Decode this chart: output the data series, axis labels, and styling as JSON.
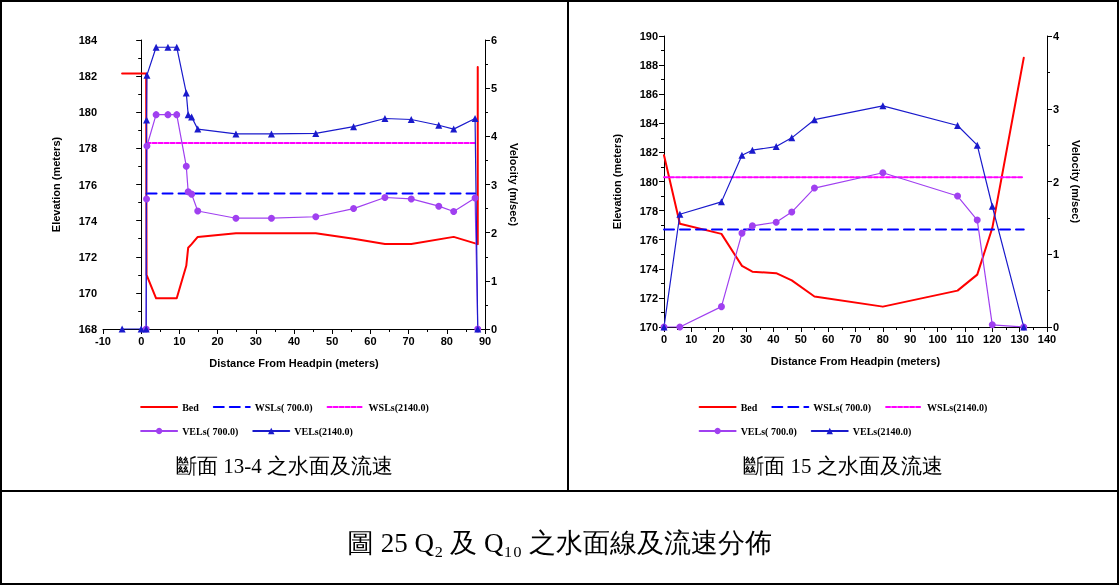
{
  "chart_data": [
    {
      "type": "line",
      "title": "斷面 13-4 之水面及流速",
      "annotations": [
        "圖 25 Q₂ 及 Q₁₀ 之水面線及流速分佈"
      ],
      "xlabel": "Distance From Headpin (meters)",
      "ylabel": "Elevation (meters)",
      "y2label": "Velocity (m/sec)",
      "xlim": [
        -10,
        90
      ],
      "xticks": [
        -10,
        0,
        10,
        20,
        30,
        40,
        50,
        60,
        70,
        80,
        90
      ],
      "ylim": [
        168,
        184
      ],
      "yticks": [
        168,
        170,
        172,
        174,
        176,
        178,
        180,
        182,
        184
      ],
      "y2lim": [
        0,
        6
      ],
      "y2ticks": [
        0,
        1,
        2,
        3,
        4,
        5,
        6
      ],
      "legend": "bottom",
      "series": [
        {
          "name": "Bed",
          "color": "#ff0000",
          "marker": "none",
          "line_style": "solid",
          "x": [
            -5,
            1.3,
            1.4,
            3.9,
            9.3,
            11.8,
            12.3,
            13.2,
            14.8,
            24.8,
            45.7,
            55.6,
            63.8,
            70.7,
            81.8,
            88.1,
            88.1
          ],
          "values": [
            182.15,
            182.15,
            171,
            169.7,
            169.7,
            171.5,
            172.5,
            172.7,
            173.1,
            173.3,
            173.3,
            173,
            172.7,
            172.7,
            173.1,
            172.7,
            182.5
          ]
        },
        {
          "name": "WSLs( 700.0)",
          "color": "#0000ff",
          "marker": "none",
          "line_style": "dashed",
          "x": [
            1.4,
            87.4
          ],
          "values": [
            175.5,
            175.5
          ]
        },
        {
          "name": "WSLs(2140.0)",
          "color": "#ff00ff",
          "marker": "none",
          "line_style": "dotted",
          "x": [
            1.4,
            87.4
          ],
          "values": [
            178.3,
            178.3
          ]
        },
        {
          "name": "VELs( 700.0)",
          "color": "#a040f0",
          "marker": "circle",
          "line_style": "solid",
          "axis": "y2",
          "x": [
            1.3,
            1.4,
            1.5,
            3.9,
            7,
            9.3,
            11.8,
            12.3,
            13.2,
            14.8,
            24.8,
            34.1,
            45.7,
            55.6,
            63.8,
            70.7,
            77.9,
            81.8,
            87.4,
            88.1
          ],
          "values": [
            0,
            2.7,
            3.8,
            4.45,
            4.45,
            4.45,
            3.38,
            2.85,
            2.8,
            2.45,
            2.3,
            2.3,
            2.33,
            2.5,
            2.73,
            2.7,
            2.55,
            2.44,
            2.72,
            0
          ]
        },
        {
          "name": "VELs(2140.0)",
          "color": "#1a1acc",
          "marker": "triangle",
          "line_style": "solid",
          "axis": "y2",
          "x": [
            -5,
            0,
            1.3,
            1.4,
            1.5,
            3.9,
            7,
            9.3,
            11.8,
            12.3,
            13.2,
            14.8,
            24.8,
            34.1,
            45.7,
            55.6,
            63.8,
            70.7,
            77.9,
            81.8,
            87.4,
            88.1
          ],
          "values": [
            0,
            0,
            0,
            4.34,
            5.27,
            5.85,
            5.85,
            5.85,
            4.9,
            4.45,
            4.4,
            4.15,
            4.05,
            4.05,
            4.06,
            4.2,
            4.37,
            4.35,
            4.23,
            4.15,
            4.37,
            0
          ]
        }
      ]
    },
    {
      "type": "line",
      "title": "斷面 15 之水面及流速",
      "xlabel": "Distance From Headpin (meters)",
      "ylabel": "Elevation (meters)",
      "y2label": "Velocity (m/sec)",
      "xlim": [
        0,
        140
      ],
      "xticks": [
        0,
        10,
        20,
        30,
        40,
        50,
        60,
        70,
        80,
        90,
        100,
        110,
        120,
        130,
        140
      ],
      "ylim": [
        170,
        190
      ],
      "yticks": [
        170,
        172,
        174,
        176,
        178,
        180,
        182,
        184,
        186,
        188,
        190
      ],
      "y2lim": [
        0,
        4
      ],
      "y2ticks": [
        0,
        1,
        2,
        3,
        4
      ],
      "legend": "bottom",
      "series": [
        {
          "name": "Bed",
          "color": "#ff0000",
          "marker": "none",
          "line_style": "solid",
          "x": [
            0,
            5.8,
            21,
            28.5,
            32.3,
            41,
            46.7,
            55,
            80,
            107.3,
            114.5,
            120,
            131.5
          ],
          "values": [
            181.8,
            177.1,
            176.4,
            174.2,
            173.8,
            173.7,
            173.2,
            172.1,
            171.4,
            172.5,
            173.6,
            176.8,
            188.5
          ]
        },
        {
          "name": "WSLs( 700.0)",
          "color": "#0000ff",
          "marker": "none",
          "line_style": "dashed",
          "x": [
            0,
            131.5
          ],
          "values": [
            176.7,
            176.7
          ]
        },
        {
          "name": "WSLs(2140.0)",
          "color": "#ff00ff",
          "marker": "none",
          "line_style": "dotted",
          "x": [
            0,
            131.5
          ],
          "values": [
            180.3,
            180.3
          ]
        },
        {
          "name": "VELs( 700.0)",
          "color": "#a040f0",
          "marker": "circle",
          "line_style": "solid",
          "axis": "y2",
          "x": [
            0,
            5.8,
            21,
            28.5,
            32.3,
            41,
            46.7,
            55,
            80,
            107.3,
            114.5,
            120,
            131.5
          ],
          "values": [
            0,
            0,
            0.28,
            1.29,
            1.39,
            1.44,
            1.58,
            1.91,
            2.12,
            1.8,
            1.47,
            0.03,
            0
          ]
        },
        {
          "name": "VELs(2140.0)",
          "color": "#1a1acc",
          "marker": "triangle",
          "line_style": "solid",
          "axis": "y2",
          "x": [
            0,
            5.8,
            21,
            28.5,
            32.3,
            41,
            46.7,
            55,
            80,
            107.3,
            114.5,
            120,
            131.5
          ],
          "values": [
            0,
            1.55,
            1.72,
            2.36,
            2.43,
            2.48,
            2.6,
            2.85,
            3.04,
            2.77,
            2.5,
            1.66,
            0
          ]
        }
      ]
    }
  ]
}
